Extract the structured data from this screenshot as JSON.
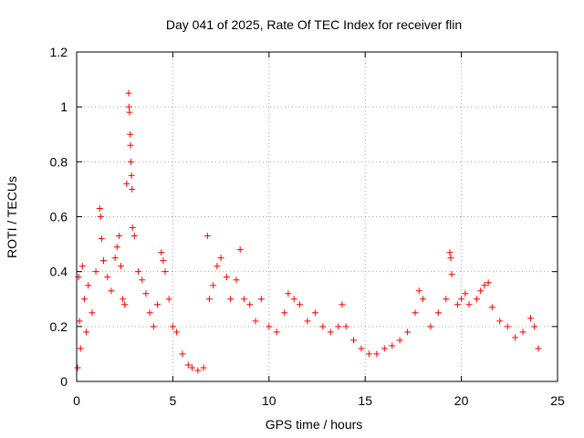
{
  "chart_data": {
    "type": "scatter",
    "title": "Day 041 of 2025, Rate Of TEC Index for receiver flin",
    "xlabel": "GPS time / hours",
    "ylabel": "ROTI / TECUs",
    "xlim": [
      0,
      25
    ],
    "ylim": [
      0,
      1.2
    ],
    "xticks": [
      0,
      5,
      10,
      15,
      20,
      25
    ],
    "xtick_labels": [
      "0",
      "5",
      "10",
      "15",
      "20",
      "25"
    ],
    "yticks": [
      0,
      0.2,
      0.4,
      0.6,
      0.8,
      1,
      1.2
    ],
    "ytick_labels": [
      "0",
      "0.2",
      "0.4",
      "0.6",
      "0.8",
      "1",
      "1.2"
    ],
    "grid": true,
    "marker": "plus",
    "series": [
      {
        "name": "ROTI",
        "color": "#ff0000",
        "x": [
          0.05,
          0.1,
          0.15,
          0.2,
          0.3,
          0.4,
          0.5,
          0.6,
          0.8,
          1.0,
          1.2,
          1.25,
          1.3,
          1.4,
          1.6,
          1.8,
          2.0,
          2.1,
          2.2,
          2.3,
          2.4,
          2.5,
          2.6,
          2.7,
          2.72,
          2.75,
          2.78,
          2.8,
          2.82,
          2.85,
          2.88,
          2.9,
          3.0,
          3.2,
          3.4,
          3.6,
          3.8,
          4.0,
          4.2,
          4.4,
          4.5,
          4.6,
          4.8,
          5.0,
          5.2,
          5.5,
          5.8,
          6.0,
          6.3,
          6.6,
          6.8,
          6.9,
          7.1,
          7.3,
          7.5,
          7.8,
          8.0,
          8.3,
          8.5,
          8.7,
          9.0,
          9.3,
          9.6,
          10.0,
          10.4,
          10.8,
          11.0,
          11.3,
          11.6,
          12.0,
          12.4,
          12.8,
          13.2,
          13.6,
          13.8,
          14.0,
          14.4,
          14.8,
          15.2,
          15.6,
          16.0,
          16.4,
          16.8,
          17.2,
          17.6,
          17.8,
          18.0,
          18.4,
          18.8,
          19.2,
          19.4,
          19.45,
          19.5,
          19.8,
          20.0,
          20.2,
          20.4,
          20.8,
          21.0,
          21.2,
          21.4,
          21.6,
          22.0,
          22.4,
          22.8,
          23.2,
          23.6,
          23.8,
          24.0
        ],
        "y": [
          0.05,
          0.38,
          0.22,
          0.12,
          0.42,
          0.3,
          0.18,
          0.35,
          0.25,
          0.4,
          0.63,
          0.6,
          0.52,
          0.44,
          0.38,
          0.33,
          0.45,
          0.49,
          0.53,
          0.42,
          0.3,
          0.28,
          0.72,
          1.05,
          1.0,
          0.98,
          0.9,
          0.86,
          0.8,
          0.75,
          0.7,
          0.56,
          0.53,
          0.4,
          0.37,
          0.32,
          0.25,
          0.2,
          0.28,
          0.47,
          0.44,
          0.4,
          0.3,
          0.2,
          0.18,
          0.1,
          0.06,
          0.05,
          0.04,
          0.05,
          0.53,
          0.3,
          0.35,
          0.42,
          0.45,
          0.38,
          0.3,
          0.37,
          0.48,
          0.3,
          0.28,
          0.22,
          0.3,
          0.2,
          0.18,
          0.25,
          0.32,
          0.3,
          0.28,
          0.22,
          0.25,
          0.2,
          0.18,
          0.2,
          0.28,
          0.2,
          0.15,
          0.12,
          0.1,
          0.1,
          0.12,
          0.13,
          0.15,
          0.18,
          0.25,
          0.33,
          0.3,
          0.2,
          0.25,
          0.3,
          0.47,
          0.45,
          0.39,
          0.28,
          0.3,
          0.32,
          0.28,
          0.3,
          0.33,
          0.35,
          0.36,
          0.27,
          0.22,
          0.2,
          0.16,
          0.18,
          0.23,
          0.2,
          0.12
        ]
      }
    ]
  }
}
